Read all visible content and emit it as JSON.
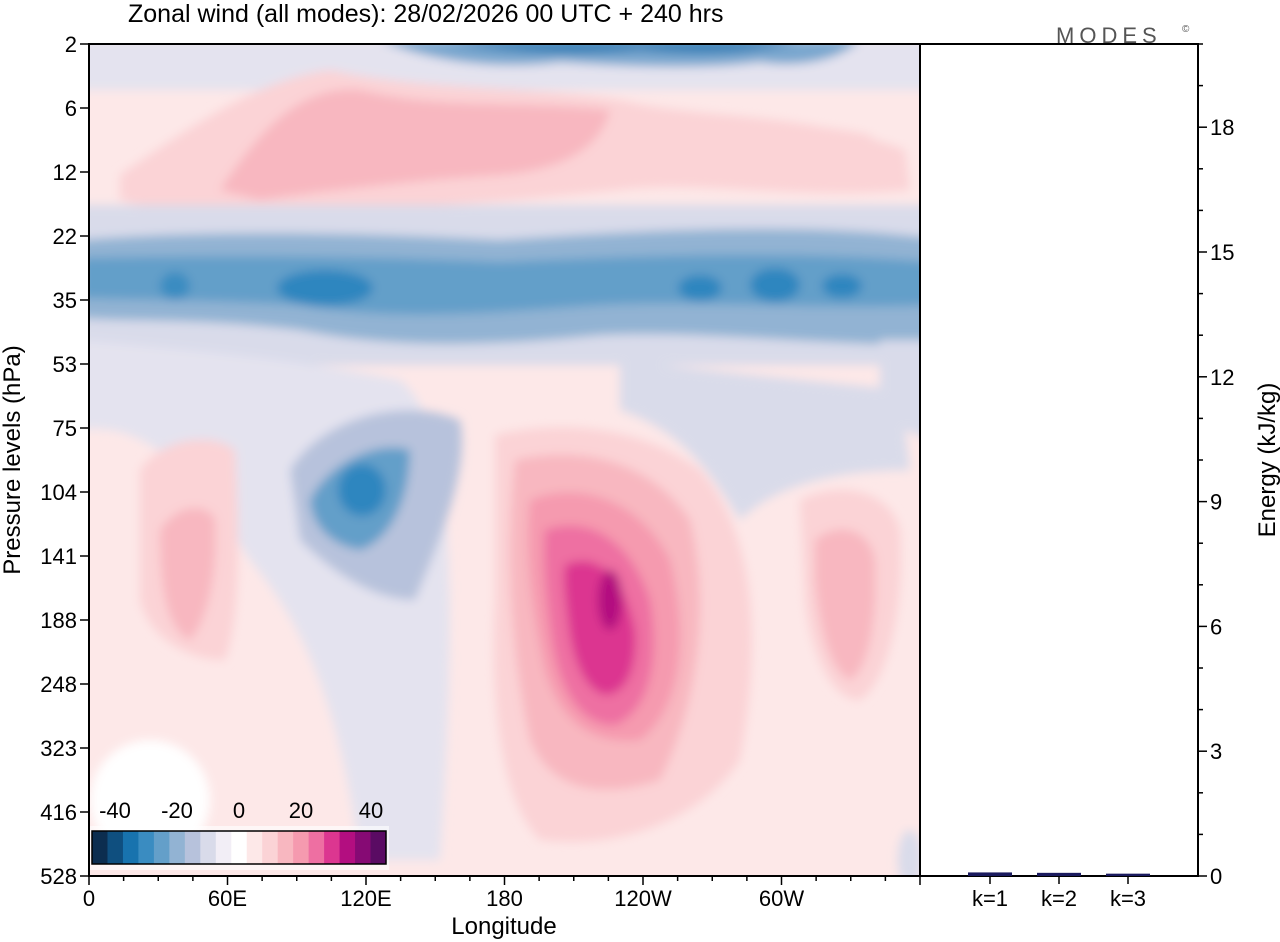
{
  "chart_data": [
    {
      "type": "heatmap",
      "title": "Zonal wind (all modes):  28/02/2026  00 UTC  + 240 hrs",
      "xlabel": "Longitude",
      "ylabel": "Pressure levels (hPa)",
      "x_ticks": [
        "0",
        "60E",
        "120E",
        "180",
        "120W",
        "60W"
      ],
      "x_range_deg_east": [
        0,
        360
      ],
      "y_ticks": [
        "2",
        "6",
        "12",
        "22",
        "35",
        "53",
        "75",
        "104",
        "141",
        "188",
        "248",
        "323",
        "416",
        "528"
      ],
      "colorbar": {
        "labels": [
          "-40",
          "-20",
          "0",
          "20",
          "40"
        ],
        "range": [
          -45,
          45
        ],
        "colors": [
          "#0c2d4f",
          "#0f4f7f",
          "#1873ae",
          "#3a8cc1",
          "#649fc9",
          "#92b3d3",
          "#b7c2dc",
          "#d9dbea",
          "#f2eef6",
          "#ffffff",
          "#fde8e8",
          "#fbd3d6",
          "#f8b7c0",
          "#f59aaf",
          "#ee6fa2",
          "#dc3690",
          "#b30e80",
          "#860a74",
          "#5a0b63"
        ]
      },
      "features": [
        {
          "name": "westerly jet core",
          "value": 44
        },
        {
          "name": "easterly band at 35 hPa",
          "value": -28
        }
      ]
    },
    {
      "type": "bar",
      "categories": [
        "k=1",
        "k=2",
        "k=3"
      ],
      "values": [
        0.05,
        0.04,
        0.02
      ],
      "ylabel": "Energy (kJ/kg)",
      "y_ticks": [
        "0",
        "3",
        "6",
        "9",
        "12",
        "15",
        "18"
      ],
      "ylim": [
        0,
        20
      ],
      "bar_color": "#1a1a5e"
    }
  ],
  "logo": "MODES",
  "logo_mark": "©"
}
